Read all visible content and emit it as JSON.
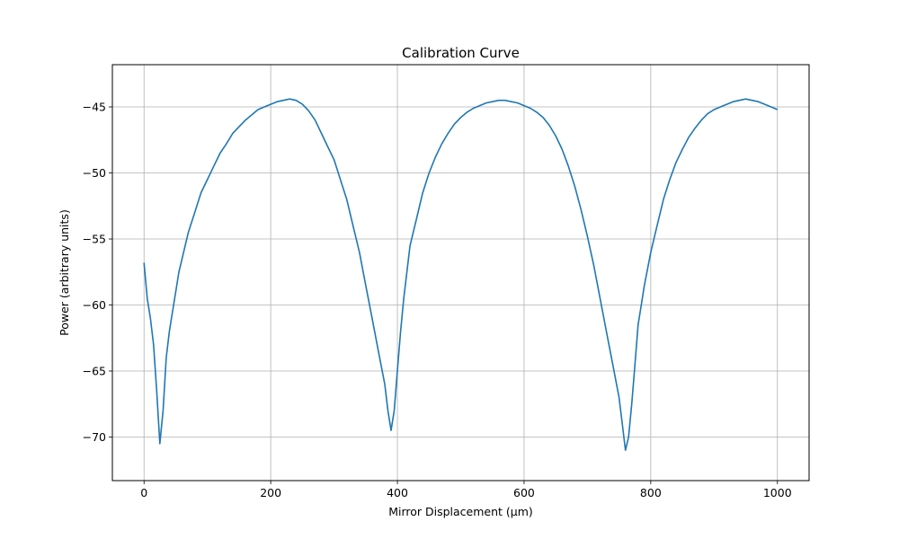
{
  "chart_data": {
    "type": "line",
    "title": "Calibration Curve",
    "xlabel": "Mirror Displacement (μm)",
    "ylabel": "Power (arbitrary units)",
    "xlim": [
      -50,
      1050
    ],
    "ylim": [
      -73.3,
      -41.8
    ],
    "xticks": [
      0,
      200,
      400,
      600,
      800,
      1000
    ],
    "yticks": [
      -45,
      -50,
      -55,
      -60,
      -65,
      -70
    ],
    "xtick_labels": [
      "0",
      "200",
      "400",
      "600",
      "800",
      "1000"
    ],
    "ytick_labels": [
      "−45",
      "−50",
      "−55",
      "−60",
      "−65",
      "−70"
    ],
    "grid": true,
    "legend": "none",
    "series_color": "#1f77b4",
    "series": [
      {
        "x": [
          0,
          5,
          10,
          15,
          20,
          25,
          30,
          35,
          40,
          45,
          50,
          55,
          60,
          70,
          80,
          90,
          100,
          110,
          120,
          130,
          140,
          150,
          160,
          170,
          180,
          190,
          200,
          210,
          220,
          230,
          240,
          250,
          260,
          270,
          280,
          290,
          300,
          310,
          320,
          330,
          340,
          350,
          360,
          370,
          380,
          385,
          390,
          395,
          400,
          405,
          410,
          415,
          420,
          430,
          440,
          450,
          460,
          470,
          480,
          490,
          500,
          510,
          520,
          530,
          540,
          550,
          560,
          570,
          580,
          590,
          600,
          610,
          620,
          630,
          640,
          650,
          660,
          670,
          680,
          690,
          700,
          710,
          720,
          730,
          740,
          750,
          755,
          760,
          765,
          770,
          775,
          780,
          790,
          800,
          810,
          820,
          830,
          840,
          850,
          860,
          870,
          880,
          890,
          900,
          910,
          920,
          930,
          940,
          950,
          960,
          970,
          980,
          990,
          1000
        ],
        "y": [
          -56.8,
          -59.5,
          -61.0,
          -63.0,
          -66.5,
          -70.5,
          -68.0,
          -64.0,
          -62.0,
          -60.5,
          -59.0,
          -57.5,
          -56.5,
          -54.5,
          -53.0,
          -51.5,
          -50.5,
          -49.5,
          -48.5,
          -47.8,
          -47.0,
          -46.5,
          -46.0,
          -45.6,
          -45.2,
          -45.0,
          -44.8,
          -44.6,
          -44.5,
          -44.4,
          -44.5,
          -44.8,
          -45.3,
          -46.0,
          -47.0,
          -48.0,
          -49.0,
          -50.5,
          -52.0,
          -54.0,
          -56.0,
          -58.5,
          -61.0,
          -63.5,
          -66.0,
          -68.0,
          -69.5,
          -68.0,
          -65.0,
          -62.0,
          -59.5,
          -57.5,
          -55.5,
          -53.5,
          -51.5,
          -50.0,
          -48.8,
          -47.8,
          -47.0,
          -46.3,
          -45.8,
          -45.4,
          -45.1,
          -44.9,
          -44.7,
          -44.6,
          -44.5,
          -44.5,
          -44.6,
          -44.7,
          -44.9,
          -45.1,
          -45.4,
          -45.8,
          -46.4,
          -47.2,
          -48.2,
          -49.5,
          -51.0,
          -52.8,
          -54.8,
          -57.0,
          -59.5,
          -62.0,
          -64.5,
          -67.0,
          -69.0,
          -71.0,
          -70.0,
          -67.5,
          -64.5,
          -61.5,
          -58.5,
          -56.0,
          -54.0,
          -52.0,
          -50.5,
          -49.2,
          -48.2,
          -47.3,
          -46.6,
          -46.0,
          -45.5,
          -45.2,
          -45.0,
          -44.8,
          -44.6,
          -44.5,
          -44.4,
          -44.5,
          -44.6,
          -44.8,
          -45.0,
          -45.2
        ]
      }
    ]
  }
}
